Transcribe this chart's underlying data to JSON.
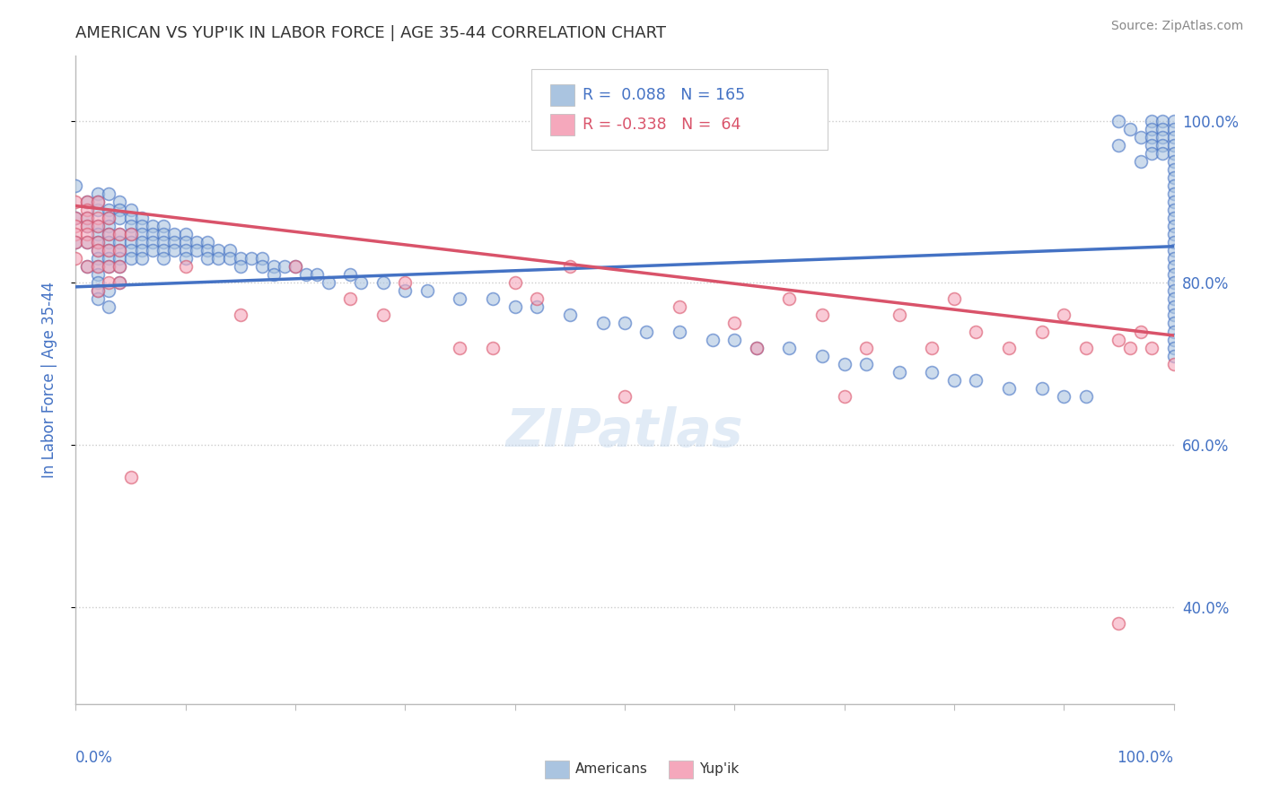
{
  "title": "AMERICAN VS YUP'IK IN LABOR FORCE | AGE 35-44 CORRELATION CHART",
  "source": "Source: ZipAtlas.com",
  "ylabel": "In Labor Force | Age 35-44",
  "legend_american_R": 0.088,
  "legend_american_N": 165,
  "legend_yupik_R": -0.338,
  "legend_yupik_N": 64,
  "american_color": "#aac4e0",
  "yupik_color": "#f5a8bc",
  "american_line_color": "#4472c4",
  "yupik_line_color": "#d9536a",
  "watermark": "ZIPatlas",
  "background_color": "#ffffff",
  "title_color": "#333333",
  "source_color": "#888888",
  "axis_label_color": "#4472c4",
  "tick_color": "#4472c4",
  "xlim": [
    0.0,
    1.0
  ],
  "ylim": [
    0.28,
    1.08
  ],
  "american_trend_x": [
    0.0,
    1.0
  ],
  "american_trend_y": [
    0.795,
    0.845
  ],
  "yupik_trend_x": [
    0.0,
    1.0
  ],
  "yupik_trend_y": [
    0.895,
    0.735
  ],
  "american_x": [
    0.0,
    0.0,
    0.0,
    0.01,
    0.01,
    0.01,
    0.01,
    0.01,
    0.02,
    0.02,
    0.02,
    0.02,
    0.02,
    0.02,
    0.02,
    0.02,
    0.02,
    0.02,
    0.02,
    0.02,
    0.02,
    0.03,
    0.03,
    0.03,
    0.03,
    0.03,
    0.03,
    0.03,
    0.03,
    0.03,
    0.03,
    0.03,
    0.04,
    0.04,
    0.04,
    0.04,
    0.04,
    0.04,
    0.04,
    0.04,
    0.04,
    0.05,
    0.05,
    0.05,
    0.05,
    0.05,
    0.05,
    0.05,
    0.06,
    0.06,
    0.06,
    0.06,
    0.06,
    0.06,
    0.07,
    0.07,
    0.07,
    0.07,
    0.08,
    0.08,
    0.08,
    0.08,
    0.08,
    0.09,
    0.09,
    0.09,
    0.1,
    0.1,
    0.1,
    0.1,
    0.11,
    0.11,
    0.12,
    0.12,
    0.12,
    0.13,
    0.13,
    0.14,
    0.14,
    0.15,
    0.15,
    0.16,
    0.17,
    0.17,
    0.18,
    0.18,
    0.19,
    0.2,
    0.21,
    0.22,
    0.23,
    0.25,
    0.26,
    0.28,
    0.3,
    0.32,
    0.35,
    0.38,
    0.4,
    0.42,
    0.45,
    0.48,
    0.5,
    0.52,
    0.55,
    0.58,
    0.6,
    0.62,
    0.65,
    0.68,
    0.7,
    0.72,
    0.75,
    0.78,
    0.8,
    0.82,
    0.85,
    0.88,
    0.9,
    0.92,
    0.95,
    0.95,
    0.96,
    0.97,
    0.97,
    0.98,
    0.98,
    0.98,
    0.98,
    0.98,
    0.99,
    0.99,
    0.99,
    0.99,
    0.99,
    1.0,
    1.0,
    1.0,
    1.0,
    1.0,
    1.0,
    1.0,
    1.0,
    1.0,
    1.0,
    1.0,
    1.0,
    1.0,
    1.0,
    1.0,
    1.0,
    1.0,
    1.0,
    1.0,
    1.0,
    1.0,
    1.0,
    1.0,
    1.0,
    1.0,
    1.0,
    1.0,
    1.0,
    1.0,
    1.0
  ],
  "american_y": [
    0.88,
    0.92,
    0.85,
    0.9,
    0.88,
    0.85,
    0.82,
    0.87,
    0.91,
    0.89,
    0.87,
    0.86,
    0.85,
    0.84,
    0.83,
    0.82,
    0.81,
    0.8,
    0.79,
    0.78,
    0.9,
    0.91,
    0.89,
    0.88,
    0.87,
    0.86,
    0.85,
    0.84,
    0.83,
    0.82,
    0.79,
    0.77,
    0.9,
    0.89,
    0.88,
    0.86,
    0.85,
    0.84,
    0.83,
    0.82,
    0.8,
    0.89,
    0.88,
    0.87,
    0.86,
    0.85,
    0.84,
    0.83,
    0.88,
    0.87,
    0.86,
    0.85,
    0.84,
    0.83,
    0.87,
    0.86,
    0.85,
    0.84,
    0.87,
    0.86,
    0.85,
    0.84,
    0.83,
    0.86,
    0.85,
    0.84,
    0.86,
    0.85,
    0.84,
    0.83,
    0.85,
    0.84,
    0.85,
    0.84,
    0.83,
    0.84,
    0.83,
    0.84,
    0.83,
    0.83,
    0.82,
    0.83,
    0.83,
    0.82,
    0.82,
    0.81,
    0.82,
    0.82,
    0.81,
    0.81,
    0.8,
    0.81,
    0.8,
    0.8,
    0.79,
    0.79,
    0.78,
    0.78,
    0.77,
    0.77,
    0.76,
    0.75,
    0.75,
    0.74,
    0.74,
    0.73,
    0.73,
    0.72,
    0.72,
    0.71,
    0.7,
    0.7,
    0.69,
    0.69,
    0.68,
    0.68,
    0.67,
    0.67,
    0.66,
    0.66,
    0.97,
    1.0,
    0.99,
    0.98,
    0.95,
    1.0,
    0.99,
    0.98,
    0.97,
    0.96,
    1.0,
    0.99,
    0.98,
    0.97,
    0.96,
    1.0,
    0.99,
    0.98,
    0.97,
    0.96,
    0.95,
    0.94,
    0.93,
    0.92,
    0.91,
    0.9,
    0.89,
    0.88,
    0.87,
    0.86,
    0.85,
    0.84,
    0.83,
    0.82,
    0.81,
    0.8,
    0.79,
    0.78,
    0.77,
    0.76,
    0.75,
    0.74,
    0.73,
    0.72,
    0.71
  ],
  "yupik_x": [
    0.0,
    0.0,
    0.0,
    0.0,
    0.0,
    0.0,
    0.01,
    0.01,
    0.01,
    0.01,
    0.01,
    0.01,
    0.01,
    0.02,
    0.02,
    0.02,
    0.02,
    0.02,
    0.02,
    0.02,
    0.03,
    0.03,
    0.03,
    0.03,
    0.03,
    0.04,
    0.04,
    0.04,
    0.04,
    0.05,
    0.05,
    0.1,
    0.15,
    0.2,
    0.25,
    0.28,
    0.3,
    0.35,
    0.38,
    0.4,
    0.42,
    0.45,
    0.5,
    0.55,
    0.6,
    0.62,
    0.65,
    0.68,
    0.7,
    0.72,
    0.75,
    0.78,
    0.8,
    0.82,
    0.85,
    0.88,
    0.9,
    0.92,
    0.95,
    0.95,
    0.96,
    0.97,
    0.98,
    1.0
  ],
  "yupik_y": [
    0.9,
    0.88,
    0.87,
    0.86,
    0.85,
    0.83,
    0.9,
    0.89,
    0.88,
    0.87,
    0.86,
    0.85,
    0.82,
    0.9,
    0.88,
    0.87,
    0.85,
    0.84,
    0.82,
    0.79,
    0.88,
    0.86,
    0.84,
    0.82,
    0.8,
    0.86,
    0.84,
    0.82,
    0.8,
    0.86,
    0.56,
    0.82,
    0.76,
    0.82,
    0.78,
    0.76,
    0.8,
    0.72,
    0.72,
    0.8,
    0.78,
    0.82,
    0.66,
    0.77,
    0.75,
    0.72,
    0.78,
    0.76,
    0.66,
    0.72,
    0.76,
    0.72,
    0.78,
    0.74,
    0.72,
    0.74,
    0.76,
    0.72,
    0.73,
    0.38,
    0.72,
    0.74,
    0.72,
    0.7
  ]
}
